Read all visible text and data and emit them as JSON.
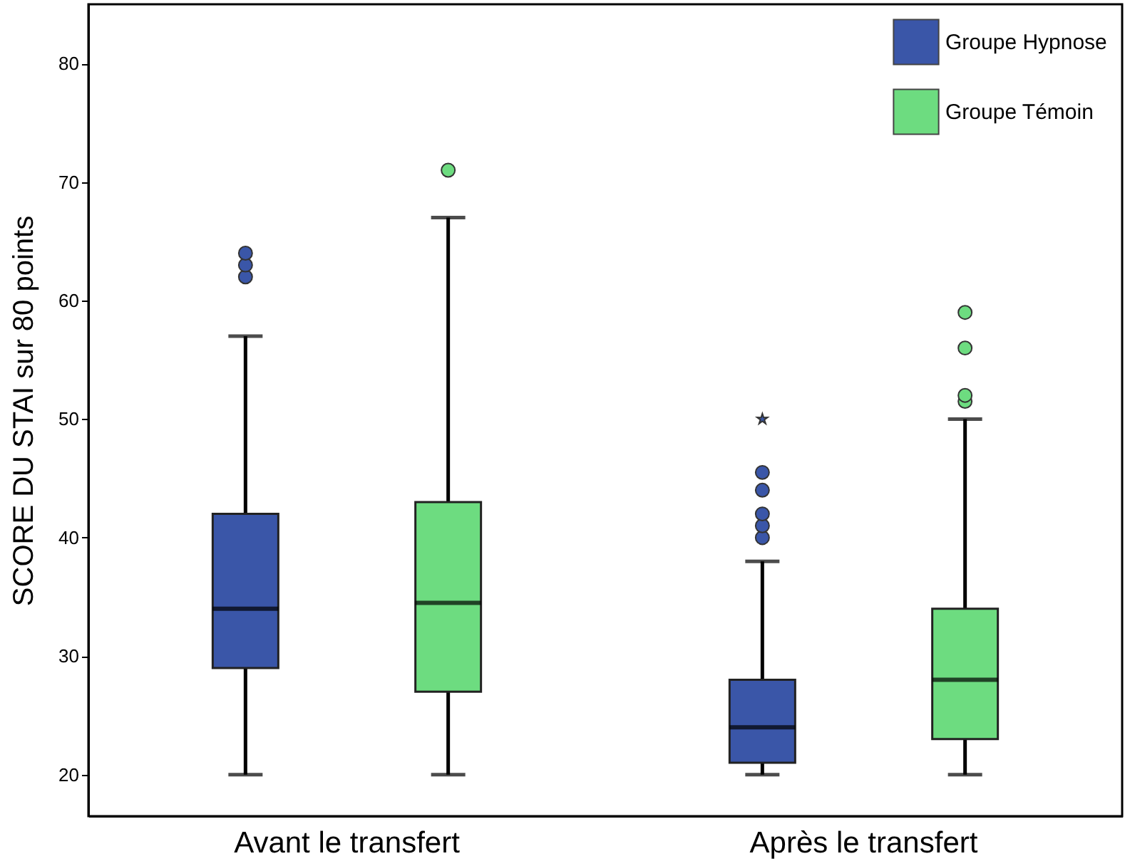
{
  "chart_data": {
    "type": "box",
    "ylabel": "SCORE DU STAI sur 80 points",
    "categories": [
      "Avant le transfert",
      "Après le transfert"
    ],
    "series": [
      {
        "name": "Groupe Hypnose",
        "color": "#3a56a8",
        "boxes": [
          {
            "low": 20,
            "q1": 29,
            "median": 34,
            "q3": 42,
            "high": 57,
            "outliers": [
              62,
              63,
              64
            ]
          },
          {
            "low": 20,
            "q1": 21,
            "median": 24,
            "q3": 28,
            "high": 38,
            "outliers": [
              40,
              41,
              42,
              44,
              45.5,
              50
            ]
          }
        ]
      },
      {
        "name": "Groupe Témoin",
        "color": "#6ddc80",
        "boxes": [
          {
            "low": 20,
            "q1": 27,
            "median": 34.5,
            "q3": 43,
            "high": 67,
            "outliers": [
              71
            ]
          },
          {
            "low": 20,
            "q1": 23,
            "median": 28,
            "q3": 34,
            "high": 50,
            "outliers": [
              51.5,
              52,
              56,
              59
            ]
          }
        ]
      }
    ],
    "ylim": [
      16.5,
      85
    ],
    "yticks": [
      20,
      30,
      40,
      50,
      60,
      70,
      80
    ],
    "grid": false,
    "legend": "top right"
  }
}
